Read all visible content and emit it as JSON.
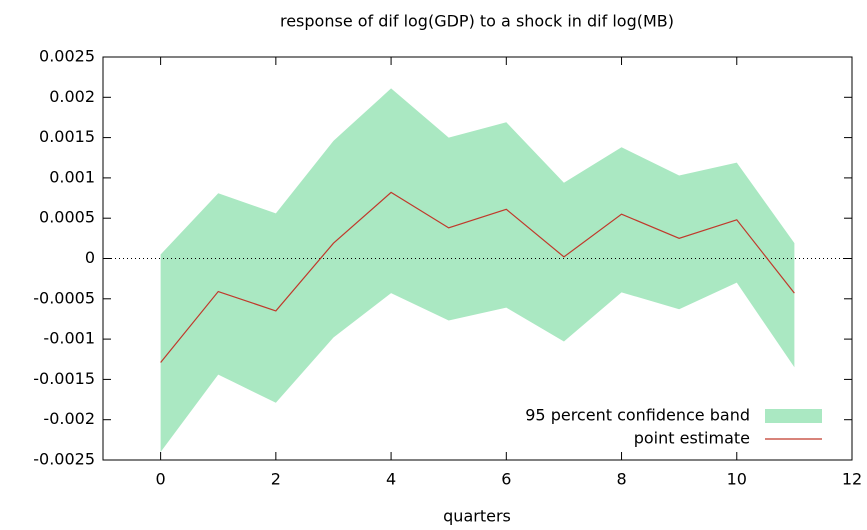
{
  "chart_data": {
    "type": "band-line",
    "title": "response of dif log(GDP) to a shock in dif log(MB)",
    "x_label": "quarters",
    "x": [
      0,
      1,
      2,
      3,
      4,
      5,
      6,
      7,
      8,
      9,
      10,
      11
    ],
    "series": [
      {
        "name": "95 percent confidence band",
        "color": "#aae8c2",
        "upper": [
          5e-05,
          0.00081,
          0.00056,
          0.00146,
          0.00211,
          0.0015,
          0.00169,
          0.00094,
          0.00138,
          0.00103,
          0.00119,
          0.00019
        ],
        "lower": [
          -0.0024,
          -0.00144,
          -0.00179,
          -0.00098,
          -0.00043,
          -0.00077,
          -0.00061,
          -0.00103,
          -0.00042,
          -0.00063,
          -0.0003,
          -0.00135
        ]
      },
      {
        "name": "point estimate",
        "color": "#c0392b",
        "values": [
          -0.00129,
          -0.00041,
          -0.00065,
          0.00019,
          0.00082,
          0.00038,
          0.00061,
          2e-05,
          0.00055,
          0.00025,
          0.00048,
          -0.00043
        ]
      }
    ],
    "xlim": [
      -1,
      12
    ],
    "xticks": [
      0,
      2,
      4,
      6,
      8,
      10,
      12
    ],
    "ylim": [
      -0.0025,
      0.0025
    ],
    "yticks": [
      -0.0025,
      -0.002,
      -0.0015,
      -0.001,
      -0.0005,
      0,
      0.0005,
      0.001,
      0.0015,
      0.002,
      0.0025
    ],
    "zero_line": true,
    "legend": "bottom-right"
  }
}
